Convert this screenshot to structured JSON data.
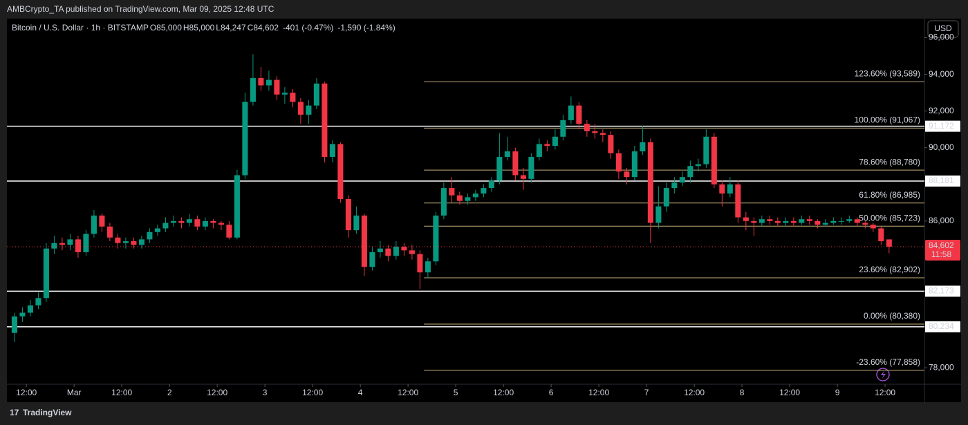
{
  "header": "AMBCrypto_TA published on TradingView.com, Mar 09, 2025 12:48 UTC",
  "footer": "TradingView",
  "chart_data": {
    "type": "candlestick",
    "symbol": "Bitcoin / U.S. Dollar · 1h · BITSTAMP",
    "ohlc": [
      {
        "key": "O",
        "value": "85,000"
      },
      {
        "key": "H",
        "value": "85,000"
      },
      {
        "key": "L",
        "value": "84,247"
      },
      {
        "key": "C",
        "value": "84,602"
      }
    ],
    "changes": [
      "-401 (-0.47%)",
      "-1,590 (-1.84%)"
    ],
    "currency": "USD",
    "up_color": "#089981",
    "down_color": "#f23645",
    "xlim": [
      -16.9,
      213.9
    ],
    "ylim": [
      77100,
      97000
    ],
    "xticks": [
      {
        "value": -12,
        "label": "12:00"
      },
      {
        "value": 0,
        "label": "Mar"
      },
      {
        "value": 12,
        "label": "12:00"
      },
      {
        "value": 24,
        "label": "2"
      },
      {
        "value": 36,
        "label": "12:00"
      },
      {
        "value": 48,
        "label": "3"
      },
      {
        "value": 60,
        "label": "12:00"
      },
      {
        "value": 72,
        "label": "4"
      },
      {
        "value": 84,
        "label": "12:00"
      },
      {
        "value": 96,
        "label": "5"
      },
      {
        "value": 108,
        "label": "12:00"
      },
      {
        "value": 120,
        "label": "6"
      },
      {
        "value": 132,
        "label": "12:00"
      },
      {
        "value": 144,
        "label": "7"
      },
      {
        "value": 156,
        "label": "12:00"
      },
      {
        "value": 168,
        "label": "8"
      },
      {
        "value": 180,
        "label": "12:00"
      },
      {
        "value": 192,
        "label": "9"
      },
      {
        "value": 204,
        "label": "12:00"
      }
    ],
    "yticks": [
      {
        "value": 78000,
        "label": "78,000"
      },
      {
        "value": 86000,
        "label": "86,000"
      },
      {
        "value": 90000,
        "label": "90,000"
      },
      {
        "value": 92000,
        "label": "92,000"
      },
      {
        "value": 94000,
        "label": "94,000"
      },
      {
        "value": 96000,
        "label": "96,000"
      }
    ],
    "x": [
      -16,
      -14,
      -12,
      -10,
      -8,
      -6,
      -4,
      -2,
      0,
      2,
      4,
      6,
      8,
      10,
      12,
      14,
      16,
      18,
      20,
      22,
      24,
      26,
      28,
      30,
      32,
      34,
      36,
      38,
      40,
      42,
      44,
      46,
      48,
      50,
      52,
      54,
      56,
      58,
      60,
      62,
      64,
      66,
      68,
      70,
      72,
      74,
      76,
      78,
      80,
      82,
      84,
      86,
      88,
      90,
      92,
      94,
      96,
      98,
      100,
      102,
      104,
      106,
      108,
      110,
      112,
      114,
      116,
      118,
      120,
      122,
      124,
      126,
      128,
      130,
      132,
      134,
      136,
      138,
      140,
      142,
      144,
      146,
      148,
      150,
      152,
      154,
      156,
      158,
      160,
      162,
      164,
      166,
      168,
      170,
      172,
      174,
      176,
      178,
      180,
      182,
      184,
      186,
      188,
      190,
      192,
      194,
      196,
      198,
      200,
      202,
      204
    ],
    "open": [
      79900,
      80800,
      81000,
      81400,
      81800,
      84500,
      84800,
      84700,
      85000,
      84300,
      85300,
      86300,
      85700,
      85100,
      84800,
      84900,
      84700,
      85000,
      85400,
      85600,
      85900,
      86000,
      85900,
      86100,
      85700,
      86000,
      85900,
      85800,
      85100,
      88500,
      92500,
      93800,
      93400,
      93700,
      92900,
      93000,
      92500,
      91800,
      92300,
      93500,
      89500,
      90200,
      87200,
      85500,
      86300,
      83500,
      84300,
      84500,
      84100,
      84600,
      84400,
      84200,
      83200,
      83800,
      86300,
      87800,
      87400,
      87100,
      87300,
      87500,
      87800,
      88200,
      89500,
      89800,
      88500,
      88300,
      89500,
      90200,
      90100,
      90600,
      91500,
      92300,
      91300,
      90900,
      90800,
      90700,
      89700,
      88700,
      88400,
      89800,
      90300,
      85900,
      86800,
      87800,
      88100,
      88400,
      89000,
      89100,
      90600,
      88000,
      87500,
      88000,
      86200,
      86000,
      85900,
      86100,
      86000,
      85900,
      86000,
      85900,
      86100,
      86000,
      85800,
      85900,
      86000,
      86000,
      86100,
      85900,
      85800,
      85600,
      85000
    ],
    "high": [
      81000,
      81300,
      81700,
      82100,
      84800,
      85200,
      85100,
      85300,
      85200,
      85500,
      86600,
      86400,
      85900,
      85300,
      85100,
      85100,
      85200,
      85600,
      85800,
      86200,
      86300,
      86200,
      86400,
      86300,
      86200,
      86100,
      86000,
      86000,
      88800,
      93000,
      95100,
      94400,
      94200,
      93900,
      93300,
      93200,
      92700,
      92600,
      93800,
      93600,
      90400,
      90300,
      87400,
      86800,
      86400,
      84600,
      84900,
      84700,
      84900,
      84800,
      84700,
      84400,
      84000,
      86500,
      88100,
      88400,
      87600,
      87500,
      87700,
      88000,
      88400,
      90800,
      90600,
      90000,
      88900,
      89700,
      90500,
      90400,
      91000,
      91800,
      92800,
      92500,
      91500,
      91300,
      91000,
      90900,
      89900,
      88900,
      90100,
      91200,
      90500,
      87900,
      88100,
      88400,
      88700,
      89300,
      89400,
      91000,
      90800,
      88200,
      88400,
      88200,
      86500,
      86200,
      86300,
      86300,
      86200,
      86200,
      86200,
      86300,
      86300,
      86100,
      86100,
      86200,
      86200,
      86300,
      86200,
      86000,
      85900,
      85700,
      85000
    ],
    "low": [
      79400,
      80500,
      80800,
      81200,
      81600,
      84200,
      84400,
      84400,
      84000,
      84100,
      85100,
      85400,
      84900,
      84500,
      84500,
      84500,
      84500,
      84800,
      85200,
      85400,
      85700,
      85600,
      85700,
      85500,
      85500,
      85600,
      85500,
      85000,
      85000,
      88300,
      92300,
      93100,
      93100,
      92600,
      92400,
      92200,
      91300,
      91300,
      92100,
      89200,
      89200,
      87000,
      85100,
      85300,
      83000,
      83300,
      84000,
      83800,
      83900,
      84100,
      83900,
      82300,
      82900,
      83600,
      86100,
      87000,
      86900,
      86900,
      87100,
      87300,
      87600,
      88000,
      89300,
      88200,
      87700,
      88100,
      89300,
      89800,
      89900,
      90400,
      91300,
      91000,
      90600,
      90500,
      90300,
      89400,
      88300,
      88000,
      88200,
      89600,
      84800,
      85600,
      86500,
      87500,
      87900,
      88100,
      88700,
      88900,
      87800,
      86800,
      87300,
      85900,
      85500,
      85200,
      85700,
      85800,
      85700,
      85700,
      85700,
      85800,
      85800,
      85600,
      85700,
      85800,
      85800,
      85900,
      85700,
      85600,
      85400,
      84700,
      84247
    ],
    "close": [
      80800,
      81000,
      81400,
      81800,
      84500,
      84800,
      84700,
      85000,
      84300,
      85300,
      86300,
      85700,
      85100,
      84800,
      84900,
      84700,
      85000,
      85400,
      85600,
      85900,
      86000,
      85900,
      86100,
      85700,
      86000,
      85900,
      85800,
      85100,
      88500,
      92500,
      93800,
      93400,
      93700,
      92900,
      93000,
      92500,
      91800,
      92300,
      93500,
      89500,
      90200,
      87200,
      85500,
      86300,
      83500,
      84300,
      84500,
      84100,
      84600,
      84400,
      84200,
      83200,
      83800,
      86300,
      87800,
      87400,
      87100,
      87300,
      87500,
      87800,
      88200,
      89500,
      89800,
      88500,
      88300,
      89500,
      90200,
      90100,
      90600,
      91500,
      92300,
      91300,
      90900,
      90800,
      90700,
      89700,
      88700,
      88400,
      89800,
      90300,
      85900,
      86800,
      87800,
      88100,
      88400,
      89000,
      89100,
      90600,
      88000,
      87500,
      88000,
      86200,
      86000,
      85900,
      86100,
      86000,
      85900,
      86000,
      85900,
      86100,
      86000,
      85800,
      85900,
      86000,
      86000,
      86100,
      85900,
      85800,
      85600,
      84900,
      84602
    ],
    "fib_levels": [
      {
        "value": 93589,
        "label": "123.60% (93,589)"
      },
      {
        "value": 91067,
        "label": "100.00% (91,067)"
      },
      {
        "value": 88780,
        "label": "78.60% (88,780)"
      },
      {
        "value": 86985,
        "label": "61.80% (86,985)"
      },
      {
        "value": 85723,
        "label": "50.00% (85,723)"
      },
      {
        "value": 82902,
        "label": "23.60% (82,902)"
      },
      {
        "value": 80380,
        "label": "0.00% (80,380)"
      },
      {
        "value": 77858,
        "label": "-23.60% (77,858)"
      }
    ],
    "fib_start_x": 88,
    "fib_color": "#c8b27c",
    "horizontal_lines": [
      {
        "value": 91172,
        "label": "91,172"
      },
      {
        "value": 88181,
        "label": "88,181"
      },
      {
        "value": 82173,
        "label": "82,173"
      },
      {
        "value": 80234,
        "label": "80,234"
      }
    ],
    "last_price": {
      "value": 84602,
      "label": "84,602",
      "countdown": "11:58"
    }
  }
}
